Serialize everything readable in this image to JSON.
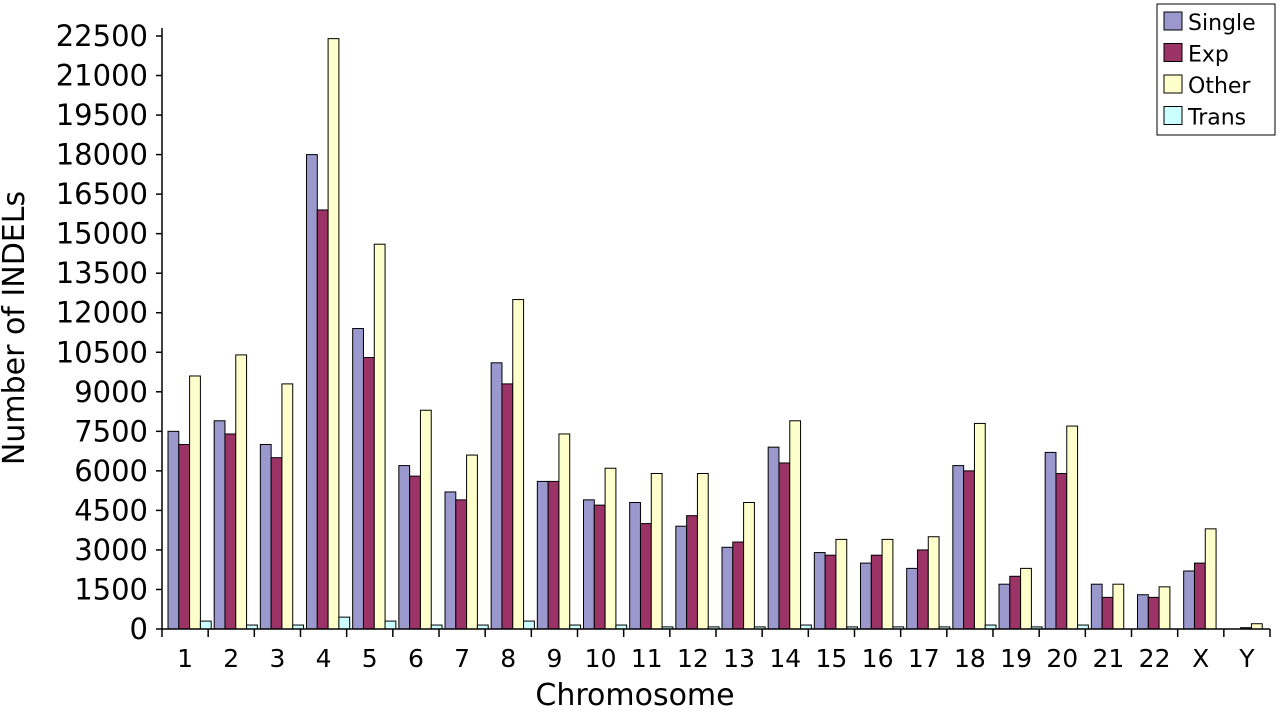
{
  "chart_data": {
    "type": "bar",
    "xlabel": "Chromosome",
    "ylabel": "Number of INDELs",
    "ylim": [
      0,
      22500
    ],
    "yticks": [
      0,
      1500,
      3000,
      4500,
      6000,
      7500,
      9000,
      10500,
      12000,
      13500,
      15000,
      16500,
      18000,
      19500,
      21000,
      22500
    ],
    "grid": false,
    "legend_position": "top-right",
    "categories": [
      "1",
      "2",
      "3",
      "4",
      "5",
      "6",
      "7",
      "8",
      "9",
      "10",
      "11",
      "12",
      "13",
      "14",
      "15",
      "16",
      "17",
      "18",
      "19",
      "20",
      "21",
      "22",
      "X",
      "Y"
    ],
    "series": [
      {
        "name": "Single",
        "color": "#9a98cc",
        "values": [
          7500,
          7900,
          7000,
          18000,
          11400,
          6200,
          5200,
          10100,
          5600,
          4900,
          4800,
          3900,
          3100,
          6900,
          2900,
          2500,
          2300,
          6200,
          1700,
          6700,
          1700,
          1300,
          2200,
          0
        ]
      },
      {
        "name": "Exp",
        "color": "#9b3366",
        "values": [
          7000,
          7400,
          6500,
          15900,
          10300,
          5800,
          4900,
          9300,
          5600,
          4700,
          4000,
          4300,
          3300,
          6300,
          2800,
          2800,
          3000,
          6000,
          2000,
          5900,
          1200,
          1200,
          2500,
          50
        ]
      },
      {
        "name": "Other",
        "color": "#ffffcc",
        "values": [
          9600,
          10400,
          9300,
          22400,
          14600,
          8300,
          6600,
          12500,
          7400,
          6100,
          5900,
          5900,
          4800,
          7900,
          3400,
          3400,
          3500,
          7800,
          2300,
          7700,
          1700,
          1600,
          3800,
          200
        ]
      },
      {
        "name": "Trans",
        "color": "#ccffff",
        "values": [
          300,
          150,
          150,
          450,
          300,
          150,
          150,
          300,
          150,
          150,
          80,
          80,
          80,
          150,
          80,
          80,
          80,
          150,
          80,
          150,
          0,
          0,
          0,
          0
        ]
      }
    ]
  }
}
